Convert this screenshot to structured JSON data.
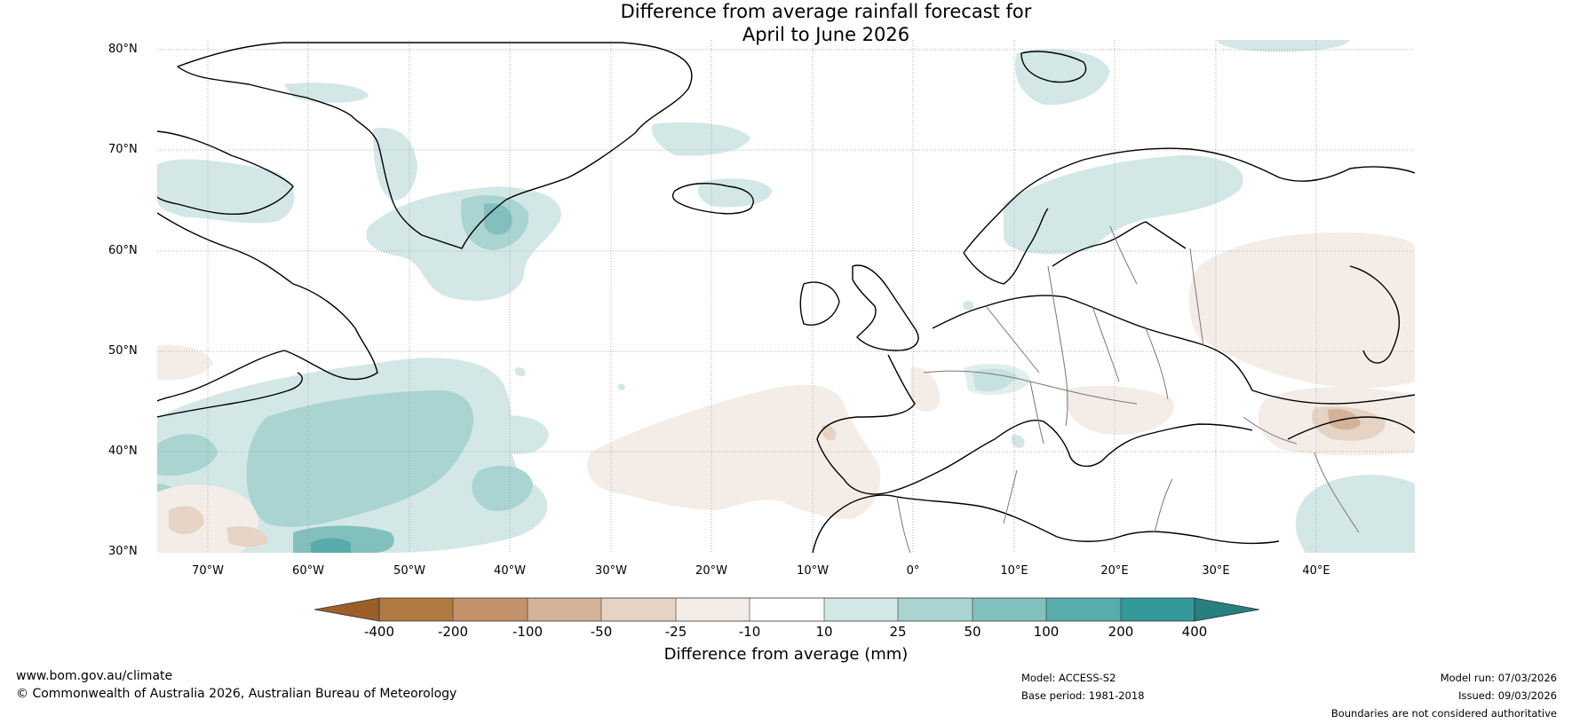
{
  "title": {
    "line1": "Difference from average rainfall forecast for",
    "line2": "April to June 2026"
  },
  "lat_labels": [
    "80°N",
    "70°N",
    "60°N",
    "50°N",
    "40°N",
    "30°N"
  ],
  "lon_labels": [
    "70°W",
    "60°W",
    "50°W",
    "40°W",
    "30°W",
    "20°W",
    "10°W",
    "0°",
    "10°E",
    "20°E",
    "30°E",
    "40°E"
  ],
  "colorbar": {
    "ticks": [
      "-400",
      "-200",
      "-100",
      "-50",
      "-25",
      "-10",
      "10",
      "25",
      "50",
      "100",
      "200",
      "400"
    ],
    "colors": [
      "#9c5f2a",
      "#b27842",
      "#c3916a",
      "#d4b298",
      "#e6d3c3",
      "#f4ede7",
      "#ffffff",
      "#d3e8e6",
      "#a9d4d2",
      "#82c0be",
      "#5aabab",
      "#33999a",
      "#277f80"
    ],
    "label": "Difference from average (mm)"
  },
  "footer": {
    "website": "www.bom.gov.au/climate",
    "copyright": "© Commonwealth of Australia 2026, Australian Bureau of Meteorology",
    "model": "Model: ACCESS-S2",
    "base_period": "Base period: 1981-2018",
    "model_run": "Model run: 07/03/2026",
    "issued": "Issued: 09/03/2026",
    "disclaimer": "Boundaries are not considered authoritative"
  }
}
